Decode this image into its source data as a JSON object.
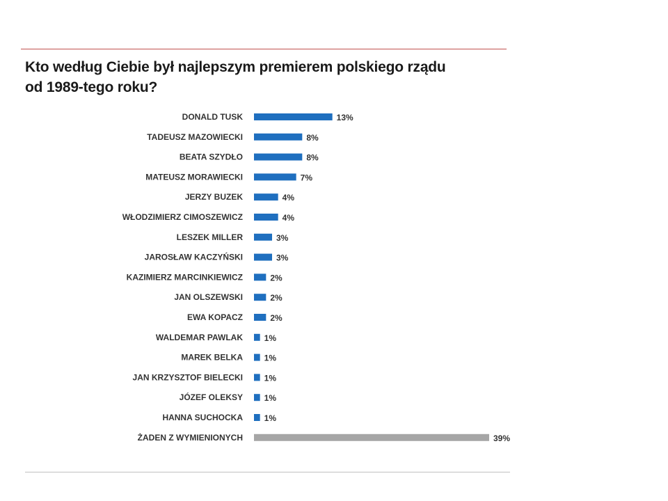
{
  "page": {
    "title_line1": "Kto według Ciebie był najlepszym premierem polskiego rządu",
    "title_line2": "od 1989-tego roku?"
  },
  "colors": {
    "bar_primary": "#1f6fbf",
    "bar_other": "#a6a6a6",
    "top_rule": "#c0504d"
  },
  "chart_data": {
    "type": "bar",
    "orientation": "horizontal",
    "title": "Kto według Ciebie był najlepszym premierem polskiego rządu od 1989-tego roku?",
    "xlabel": "",
    "ylabel": "",
    "value_suffix": "%",
    "xlim": [
      0,
      39
    ],
    "categories": [
      "DONALD TUSK",
      "TADEUSZ MAZOWIECKI",
      "BEATA SZYDŁO",
      "MATEUSZ MORAWIECKI",
      "JERZY BUZEK",
      "WŁODZIMIERZ CIMOSZEWICZ",
      "LESZEK MILLER",
      "JAROSŁAW KACZYŃSKI",
      "KAZIMIERZ MARCINKIEWICZ",
      "JAN OLSZEWSKI",
      "EWA KOPACZ",
      "WALDEMAR PAWLAK",
      "MAREK BELKA",
      "JAN KRZYSZTOF BIELECKI",
      "JÓZEF OLEKSY",
      "HANNA SUCHOCKA",
      "ŻADEN Z WYMIENIONYCH"
    ],
    "values": [
      13,
      8,
      8,
      7,
      4,
      4,
      3,
      3,
      2,
      2,
      2,
      1,
      1,
      1,
      1,
      1,
      39
    ],
    "value_labels": [
      "13%",
      "8%",
      "8%",
      "7%",
      "4%",
      "4%",
      "3%",
      "3%",
      "2%",
      "2%",
      "2%",
      "1%",
      "1%",
      "1%",
      "1%",
      "1%",
      "39%"
    ],
    "highlight": [
      false,
      false,
      false,
      false,
      false,
      false,
      false,
      false,
      false,
      false,
      false,
      false,
      false,
      false,
      false,
      false,
      true
    ]
  }
}
